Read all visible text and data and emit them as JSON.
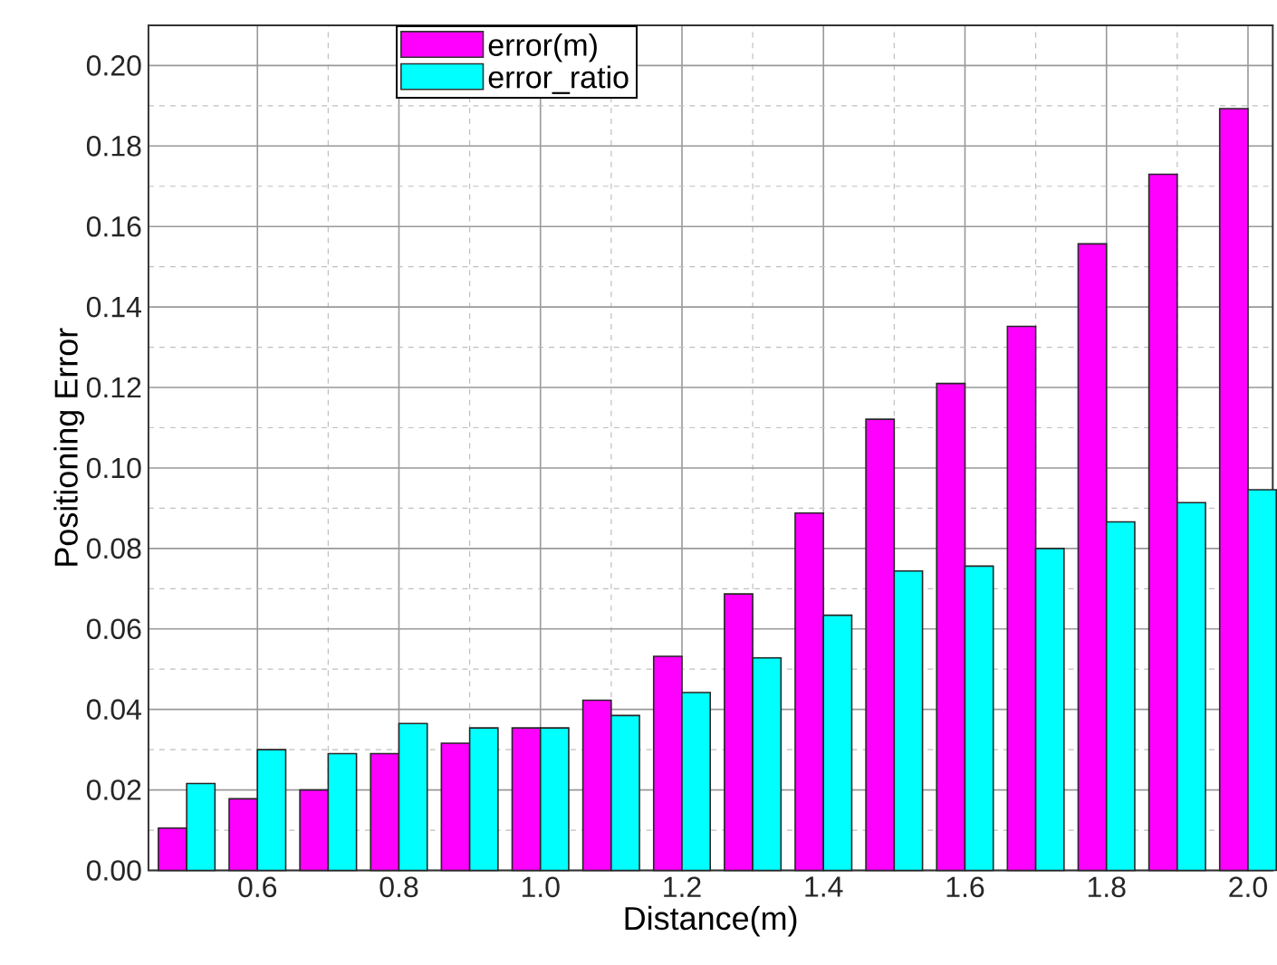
{
  "chart_data": {
    "type": "bar",
    "xlabel": "Distance(m)",
    "ylabel": "Positioning Error",
    "x": [
      0.5,
      0.6,
      0.7,
      0.8,
      0.9,
      1.0,
      1.1,
      1.2,
      1.3,
      1.4,
      1.5,
      1.6,
      1.7,
      1.8,
      1.9,
      2.0
    ],
    "series": [
      {
        "name": "error(m)",
        "color": "#ff00ff",
        "values": [
          0.0105,
          0.0178,
          0.02,
          0.029,
          0.0316,
          0.0354,
          0.0423,
          0.0532,
          0.0687,
          0.0888,
          0.1121,
          0.121,
          0.1352,
          0.1557,
          0.173,
          0.1893
        ]
      },
      {
        "name": "error_ratio",
        "color": "#00ffff",
        "values": [
          0.0216,
          0.03,
          0.029,
          0.0365,
          0.0354,
          0.0354,
          0.0385,
          0.0442,
          0.0528,
          0.0634,
          0.0744,
          0.0756,
          0.08,
          0.0866,
          0.0914,
          0.0946
        ]
      }
    ],
    "xlim": [
      0.446,
      2.035
    ],
    "ylim": [
      0,
      0.21
    ],
    "xticks": [
      0.6,
      0.8,
      {
        "value": 1.0,
        "label": "1.0"
      },
      1.2,
      1.4,
      1.6,
      1.8,
      {
        "value": 2.0,
        "label": "2.0"
      }
    ],
    "yticks": [
      {
        "value": 0,
        "label": "0.00"
      },
      0.02,
      0.04,
      0.06,
      0.08,
      {
        "value": 0.1,
        "label": "0.10"
      },
      0.12,
      0.14,
      0.16,
      0.18,
      {
        "value": 0.2,
        "label": "0.20"
      }
    ],
    "grid": true,
    "legend": "top"
  }
}
